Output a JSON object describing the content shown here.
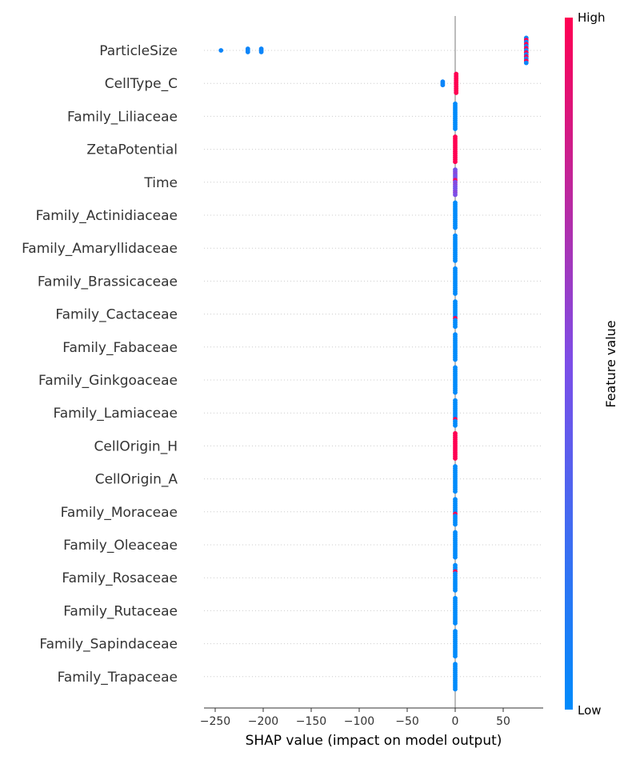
{
  "chart_data": {
    "type": "scatter",
    "subtype": "shap-beeswarm",
    "xlabel": "SHAP value (impact on model output)",
    "xlim": [
      -262,
      91
    ],
    "xticks": [
      -250,
      -200,
      -150,
      -100,
      -50,
      0,
      50
    ],
    "grid": "dotted row guides",
    "colorbar": {
      "title": "Feature value",
      "high_label": "High",
      "low_label": "Low",
      "low_color": "#008bfb",
      "mid_color": "#7c4ee8",
      "high_color": "#ff0052"
    },
    "features": [
      {
        "name": "ParticleSize",
        "points": [
          {
            "x": -244,
            "v": 0.05
          },
          {
            "x": -216,
            "v": 0.05
          },
          {
            "x": -216,
            "v": 0.05
          },
          {
            "x": -216,
            "v": 0.05
          },
          {
            "x": -202,
            "v": 0.05
          },
          {
            "x": -202,
            "v": 0.05
          },
          {
            "x": -202,
            "v": 0.05
          },
          {
            "x": 74,
            "v": 0.05
          },
          {
            "x": 74,
            "v": 1.0
          },
          {
            "x": 74,
            "v": 0.05
          },
          {
            "x": 74,
            "v": 1.0
          },
          {
            "x": 74,
            "v": 0.05
          },
          {
            "x": 74,
            "v": 1.0
          },
          {
            "x": 74,
            "v": 0.05
          },
          {
            "x": 74,
            "v": 1.0
          },
          {
            "x": 74,
            "v": 0.05
          },
          {
            "x": 74,
            "v": 1.0
          },
          {
            "x": 74,
            "v": 0.05
          },
          {
            "x": 74,
            "v": 1.0
          },
          {
            "x": 74,
            "v": 0.05
          }
        ]
      },
      {
        "name": "CellType_C",
        "points": [
          {
            "x": -13,
            "v": 0.05
          },
          {
            "x": -13,
            "v": 0.05
          },
          {
            "x": -13,
            "v": 0.05
          },
          {
            "x": 1,
            "v": 1.0
          },
          {
            "x": 1,
            "v": 1.0
          },
          {
            "x": 1,
            "v": 1.0
          },
          {
            "x": 1,
            "v": 1.0
          },
          {
            "x": 1,
            "v": 1.0
          },
          {
            "x": 1,
            "v": 1.0
          },
          {
            "x": 1,
            "v": 1.0
          },
          {
            "x": 1,
            "v": 1.0
          },
          {
            "x": 1,
            "v": 1.0
          },
          {
            "x": 1,
            "v": 1.0
          }
        ]
      },
      {
        "name": "Family_Liliaceae",
        "points": [
          {
            "x": 0,
            "v": 0.0
          },
          {
            "x": 0,
            "v": 0.0
          },
          {
            "x": 0,
            "v": 0.0
          },
          {
            "x": 0,
            "v": 0.0
          },
          {
            "x": 0,
            "v": 0.0
          },
          {
            "x": 0,
            "v": 0.0
          },
          {
            "x": 0,
            "v": 0.0
          },
          {
            "x": 0,
            "v": 0.0
          },
          {
            "x": 0,
            "v": 0.0
          },
          {
            "x": 0,
            "v": 0.0
          },
          {
            "x": 0,
            "v": 0.0
          },
          {
            "x": 0,
            "v": 0.0
          },
          {
            "x": 0,
            "v": 0.0
          }
        ]
      },
      {
        "name": "ZetaPotential",
        "points": [
          {
            "x": 0,
            "v": 1.0
          },
          {
            "x": 0,
            "v": 1.0
          },
          {
            "x": 0,
            "v": 1.0
          },
          {
            "x": 0,
            "v": 1.0
          },
          {
            "x": 0,
            "v": 1.0
          },
          {
            "x": 0,
            "v": 1.0
          },
          {
            "x": 0,
            "v": 1.0
          },
          {
            "x": 0,
            "v": 1.0
          },
          {
            "x": 0,
            "v": 1.0
          },
          {
            "x": 0,
            "v": 1.0
          },
          {
            "x": 0,
            "v": 1.0
          },
          {
            "x": 0,
            "v": 1.0
          },
          {
            "x": 0,
            "v": 1.0
          }
        ]
      },
      {
        "name": "Time",
        "points": [
          {
            "x": 0,
            "v": 0.45
          },
          {
            "x": 0,
            "v": 0.5
          },
          {
            "x": 0,
            "v": 0.55
          },
          {
            "x": 0,
            "v": 0.45
          },
          {
            "x": 0,
            "v": 0.5
          },
          {
            "x": 0,
            "v": 0.95
          },
          {
            "x": 0,
            "v": 0.5
          },
          {
            "x": 0,
            "v": 0.55
          },
          {
            "x": 0,
            "v": 0.5
          },
          {
            "x": 0,
            "v": 0.45
          },
          {
            "x": 0,
            "v": 0.5
          },
          {
            "x": 0,
            "v": 0.55
          },
          {
            "x": 0,
            "v": 0.5
          }
        ]
      },
      {
        "name": "Family_Actinidiaceae",
        "points": [
          {
            "x": 0,
            "v": 0.0
          },
          {
            "x": 0,
            "v": 0.0
          },
          {
            "x": 0,
            "v": 0.0
          },
          {
            "x": 0,
            "v": 0.0
          },
          {
            "x": 0,
            "v": 0.0
          },
          {
            "x": 0,
            "v": 0.0
          },
          {
            "x": 0,
            "v": 0.0
          },
          {
            "x": 0,
            "v": 0.0
          },
          {
            "x": 0,
            "v": 0.0
          },
          {
            "x": 0,
            "v": 0.0
          },
          {
            "x": 0,
            "v": 0.0
          },
          {
            "x": 0,
            "v": 0.0
          },
          {
            "x": 0,
            "v": 0.0
          }
        ]
      },
      {
        "name": "Family_Amaryllidaceae",
        "points": [
          {
            "x": 0,
            "v": 0.0
          },
          {
            "x": 0,
            "v": 0.0
          },
          {
            "x": 0,
            "v": 0.0
          },
          {
            "x": 0,
            "v": 0.0
          },
          {
            "x": 0,
            "v": 0.0
          },
          {
            "x": 0,
            "v": 0.0
          },
          {
            "x": 0,
            "v": 0.0
          },
          {
            "x": 0,
            "v": 0.0
          },
          {
            "x": 0,
            "v": 0.0
          },
          {
            "x": 0,
            "v": 0.0
          },
          {
            "x": 0,
            "v": 0.0
          },
          {
            "x": 0,
            "v": 0.0
          },
          {
            "x": 0,
            "v": 0.0
          }
        ]
      },
      {
        "name": "Family_Brassicaceae",
        "points": [
          {
            "x": 0,
            "v": 0.0
          },
          {
            "x": 0,
            "v": 0.0
          },
          {
            "x": 0,
            "v": 0.0
          },
          {
            "x": 0,
            "v": 0.0
          },
          {
            "x": 0,
            "v": 0.0
          },
          {
            "x": 0,
            "v": 0.0
          },
          {
            "x": 0,
            "v": 0.0
          },
          {
            "x": 0,
            "v": 0.0
          },
          {
            "x": 0,
            "v": 0.0
          },
          {
            "x": 0,
            "v": 0.0
          },
          {
            "x": 0,
            "v": 0.0
          },
          {
            "x": 0,
            "v": 0.0
          },
          {
            "x": 0,
            "v": 0.0
          }
        ]
      },
      {
        "name": "Family_Cactaceae",
        "points": [
          {
            "x": 0,
            "v": 0.0
          },
          {
            "x": 0,
            "v": 0.0
          },
          {
            "x": 0,
            "v": 0.0
          },
          {
            "x": 0,
            "v": 0.0
          },
          {
            "x": 0,
            "v": 0.0
          },
          {
            "x": 0,
            "v": 0.0
          },
          {
            "x": 0,
            "v": 0.0
          },
          {
            "x": 0,
            "v": 0.0
          },
          {
            "x": 0,
            "v": 1.0
          },
          {
            "x": 0,
            "v": 0.0
          },
          {
            "x": 0,
            "v": 0.0
          },
          {
            "x": 0,
            "v": 0.0
          },
          {
            "x": 0,
            "v": 0.0
          }
        ]
      },
      {
        "name": "Family_Fabaceae",
        "points": [
          {
            "x": 0,
            "v": 0.0
          },
          {
            "x": 0,
            "v": 0.0
          },
          {
            "x": 0,
            "v": 0.0
          },
          {
            "x": 0,
            "v": 0.0
          },
          {
            "x": 0,
            "v": 0.0
          },
          {
            "x": 0,
            "v": 0.0
          },
          {
            "x": 0,
            "v": 0.0
          },
          {
            "x": 0,
            "v": 0.0
          },
          {
            "x": 0,
            "v": 0.0
          },
          {
            "x": 0,
            "v": 0.0
          },
          {
            "x": 0,
            "v": 0.0
          },
          {
            "x": 0,
            "v": 0.0
          },
          {
            "x": 0,
            "v": 0.0
          }
        ]
      },
      {
        "name": "Family_Ginkgoaceae",
        "points": [
          {
            "x": 0,
            "v": 0.0
          },
          {
            "x": 0,
            "v": 0.0
          },
          {
            "x": 0,
            "v": 0.0
          },
          {
            "x": 0,
            "v": 0.0
          },
          {
            "x": 0,
            "v": 0.0
          },
          {
            "x": 0,
            "v": 0.0
          },
          {
            "x": 0,
            "v": 0.0
          },
          {
            "x": 0,
            "v": 0.0
          },
          {
            "x": 0,
            "v": 0.0
          },
          {
            "x": 0,
            "v": 0.0
          },
          {
            "x": 0,
            "v": 0.0
          },
          {
            "x": 0,
            "v": 0.0
          },
          {
            "x": 0,
            "v": 0.0
          }
        ]
      },
      {
        "name": "Family_Lamiaceae",
        "points": [
          {
            "x": 0,
            "v": 0.0
          },
          {
            "x": 0,
            "v": 0.0
          },
          {
            "x": 0,
            "v": 0.0
          },
          {
            "x": 0,
            "v": 0.0
          },
          {
            "x": 0,
            "v": 0.0
          },
          {
            "x": 0,
            "v": 0.0
          },
          {
            "x": 0,
            "v": 0.0
          },
          {
            "x": 0,
            "v": 0.0
          },
          {
            "x": 0,
            "v": 0.0
          },
          {
            "x": 0,
            "v": 1.0
          },
          {
            "x": 0,
            "v": 0.0
          },
          {
            "x": 0,
            "v": 0.0
          },
          {
            "x": 0,
            "v": 0.0
          }
        ]
      },
      {
        "name": "CellOrigin_H",
        "points": [
          {
            "x": 0,
            "v": 1.0
          },
          {
            "x": 0,
            "v": 1.0
          },
          {
            "x": 0,
            "v": 1.0
          },
          {
            "x": 0,
            "v": 1.0
          },
          {
            "x": 0,
            "v": 1.0
          },
          {
            "x": 0,
            "v": 1.0
          },
          {
            "x": 0,
            "v": 1.0
          },
          {
            "x": 0,
            "v": 1.0
          },
          {
            "x": 0,
            "v": 1.0
          },
          {
            "x": 0,
            "v": 1.0
          },
          {
            "x": 0,
            "v": 1.0
          },
          {
            "x": 0,
            "v": 1.0
          },
          {
            "x": 0,
            "v": 1.0
          }
        ]
      },
      {
        "name": "CellOrigin_A",
        "points": [
          {
            "x": 0,
            "v": 0.0
          },
          {
            "x": 0,
            "v": 0.0
          },
          {
            "x": 0,
            "v": 0.0
          },
          {
            "x": 0,
            "v": 0.0
          },
          {
            "x": 0,
            "v": 0.0
          },
          {
            "x": 0,
            "v": 0.0
          },
          {
            "x": 0,
            "v": 0.0
          },
          {
            "x": 0,
            "v": 0.0
          },
          {
            "x": 0,
            "v": 0.0
          },
          {
            "x": 0,
            "v": 0.0
          },
          {
            "x": 0,
            "v": 0.0
          },
          {
            "x": 0,
            "v": 0.0
          },
          {
            "x": 0,
            "v": 0.0
          }
        ]
      },
      {
        "name": "Family_Moraceae",
        "points": [
          {
            "x": 0,
            "v": 0.0
          },
          {
            "x": 0,
            "v": 0.0
          },
          {
            "x": 0,
            "v": 0.0
          },
          {
            "x": 0,
            "v": 0.0
          },
          {
            "x": 0,
            "v": 0.0
          },
          {
            "x": 0,
            "v": 0.0
          },
          {
            "x": 0,
            "v": 0.0
          },
          {
            "x": 0,
            "v": 1.0
          },
          {
            "x": 0,
            "v": 0.0
          },
          {
            "x": 0,
            "v": 0.0
          },
          {
            "x": 0,
            "v": 0.0
          },
          {
            "x": 0,
            "v": 0.0
          },
          {
            "x": 0,
            "v": 0.0
          }
        ]
      },
      {
        "name": "Family_Oleaceae",
        "points": [
          {
            "x": 0,
            "v": 0.0
          },
          {
            "x": 0,
            "v": 0.0
          },
          {
            "x": 0,
            "v": 0.0
          },
          {
            "x": 0,
            "v": 0.0
          },
          {
            "x": 0,
            "v": 0.0
          },
          {
            "x": 0,
            "v": 0.0
          },
          {
            "x": 0,
            "v": 0.0
          },
          {
            "x": 0,
            "v": 0.0
          },
          {
            "x": 0,
            "v": 0.0
          },
          {
            "x": 0,
            "v": 0.0
          },
          {
            "x": 0,
            "v": 0.0
          },
          {
            "x": 0,
            "v": 0.0
          },
          {
            "x": 0,
            "v": 0.0
          }
        ]
      },
      {
        "name": "Family_Rosaceae",
        "points": [
          {
            "x": 0,
            "v": 0.0
          },
          {
            "x": 0,
            "v": 0.0
          },
          {
            "x": 0,
            "v": 0.0
          },
          {
            "x": 0,
            "v": 1.0
          },
          {
            "x": 0,
            "v": 0.0
          },
          {
            "x": 0,
            "v": 0.0
          },
          {
            "x": 0,
            "v": 0.0
          },
          {
            "x": 0,
            "v": 0.0
          },
          {
            "x": 0,
            "v": 0.0
          },
          {
            "x": 0,
            "v": 0.0
          },
          {
            "x": 0,
            "v": 0.0
          },
          {
            "x": 0,
            "v": 0.0
          },
          {
            "x": 0,
            "v": 0.0
          }
        ]
      },
      {
        "name": "Family_Rutaceae",
        "points": [
          {
            "x": 0,
            "v": 0.0
          },
          {
            "x": 0,
            "v": 0.0
          },
          {
            "x": 0,
            "v": 0.0
          },
          {
            "x": 0,
            "v": 0.0
          },
          {
            "x": 0,
            "v": 0.0
          },
          {
            "x": 0,
            "v": 0.0
          },
          {
            "x": 0,
            "v": 0.0
          },
          {
            "x": 0,
            "v": 0.0
          },
          {
            "x": 0,
            "v": 0.0
          },
          {
            "x": 0,
            "v": 0.0
          },
          {
            "x": 0,
            "v": 0.0
          },
          {
            "x": 0,
            "v": 0.0
          },
          {
            "x": 0,
            "v": 0.0
          }
        ]
      },
      {
        "name": "Family_Sapindaceae",
        "points": [
          {
            "x": 0,
            "v": 0.0
          },
          {
            "x": 0,
            "v": 0.0
          },
          {
            "x": 0,
            "v": 0.0
          },
          {
            "x": 0,
            "v": 0.0
          },
          {
            "x": 0,
            "v": 0.0
          },
          {
            "x": 0,
            "v": 0.0
          },
          {
            "x": 0,
            "v": 0.0
          },
          {
            "x": 0,
            "v": 0.0
          },
          {
            "x": 0,
            "v": 0.0
          },
          {
            "x": 0,
            "v": 0.0
          },
          {
            "x": 0,
            "v": 0.0
          },
          {
            "x": 0,
            "v": 0.0
          },
          {
            "x": 0,
            "v": 0.0
          }
        ]
      },
      {
        "name": "Family_Trapaceae",
        "points": [
          {
            "x": 0,
            "v": 0.0
          },
          {
            "x": 0,
            "v": 0.0
          },
          {
            "x": 0,
            "v": 0.0
          },
          {
            "x": 0,
            "v": 0.0
          },
          {
            "x": 0,
            "v": 0.0
          },
          {
            "x": 0,
            "v": 0.0
          },
          {
            "x": 0,
            "v": 0.0
          },
          {
            "x": 0,
            "v": 0.0
          },
          {
            "x": 0,
            "v": 0.0
          },
          {
            "x": 0,
            "v": 0.0
          },
          {
            "x": 0,
            "v": 0.0
          },
          {
            "x": 0,
            "v": 0.0
          },
          {
            "x": 0,
            "v": 0.0
          }
        ]
      }
    ]
  }
}
